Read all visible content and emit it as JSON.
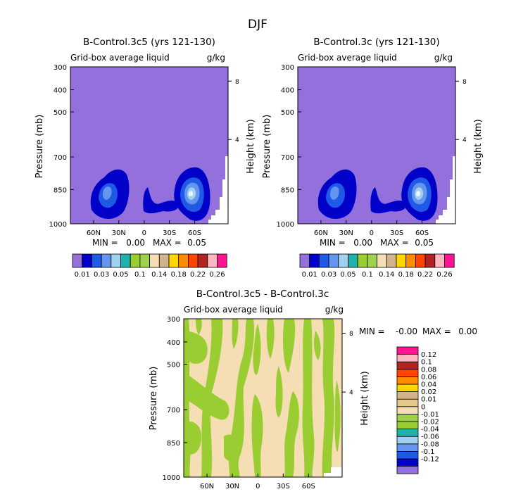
{
  "title": "DJF",
  "colors": {
    "cb_top": [
      "#9370db",
      "#0000c8",
      "#1e5ae6",
      "#6496f0",
      "#a0d2f0",
      "#20b2aa",
      "#9acd32",
      "#9ed24a",
      "#f5deb3",
      "#d2b48c",
      "#ffd700",
      "#ff8c00",
      "#ff4500",
      "#b22222",
      "#ffb6c1",
      "#ff1493"
    ],
    "cb_diff": [
      "#9370db",
      "#0000c8",
      "#1e5ae6",
      "#6496f0",
      "#a0d2f0",
      "#20b2aa",
      "#9acd32",
      "#9ed24a",
      "#f5deb3",
      "#e6c88c",
      "#d2b48c",
      "#ffd700",
      "#ff8c00",
      "#ff4500",
      "#b22222",
      "#ffb6c1",
      "#ff1493"
    ]
  },
  "chart_data": [
    {
      "type": "heatmap",
      "title": "B-Control.3c5 (yrs 121-130)",
      "subtitle_left": "Grid-box average liquid",
      "subtitle_right": "g/kg",
      "ylabel": "Pressure (mb)",
      "ylabel_right": "Height (km)",
      "y_ticks": [
        "300",
        "400",
        "500",
        "700",
        "850",
        "1000"
      ],
      "y_right_ticks": [
        "8",
        "4"
      ],
      "x_ticks": [
        "60N",
        "30N",
        "0",
        "30S",
        "60S"
      ],
      "stats": {
        "min_label": "MIN =",
        "min": "0.00",
        "max_label": "MAX =",
        "max": "0.05"
      },
      "colorbar_labels": [
        "0.01",
        "0.03",
        "0.05",
        "0.1",
        "0.14",
        "0.18",
        "0.22",
        "0.26"
      ],
      "xlim": [
        "90N",
        "90S"
      ],
      "ylim_mb": [
        1000,
        300
      ]
    },
    {
      "type": "heatmap",
      "title": "B-Control.3c (yrs 121-130)",
      "subtitle_left": "Grid-box average liquid",
      "subtitle_right": "g/kg",
      "ylabel": "Pressure (mb)",
      "ylabel_right": "Height (km)",
      "y_ticks": [
        "300",
        "400",
        "500",
        "700",
        "850",
        "1000"
      ],
      "y_right_ticks": [
        "8",
        "4"
      ],
      "x_ticks": [
        "60N",
        "30N",
        "0",
        "30S",
        "60S"
      ],
      "stats": {
        "min_label": "MIN =",
        "min": "0.00",
        "max_label": "MAX =",
        "max": "0.05"
      },
      "colorbar_labels": [
        "0.01",
        "0.03",
        "0.05",
        "0.1",
        "0.14",
        "0.18",
        "0.22",
        "0.26"
      ],
      "xlim": [
        "90N",
        "90S"
      ],
      "ylim_mb": [
        1000,
        300
      ]
    },
    {
      "type": "heatmap",
      "title": "B-Control.3c5 - B-Control.3c",
      "subtitle_left": "Grid-box average liquid",
      "subtitle_right": "g/kg",
      "ylabel": "Pressure (mb)",
      "ylabel_right": "Height (km)",
      "y_ticks": [
        "300",
        "400",
        "500",
        "700",
        "850",
        "1000"
      ],
      "y_right_ticks": [
        "8",
        "4"
      ],
      "x_ticks": [
        "60N",
        "30N",
        "0",
        "30S",
        "60S"
      ],
      "stats": {
        "min_label": "MIN =",
        "min": "-0.00",
        "max_label": "MAX =",
        "max": "0.00"
      },
      "colorbar_labels": [
        "0.12",
        "0.1",
        "0.08",
        "0.06",
        "0.04",
        "0.02",
        "0.01",
        "0",
        "-0.01",
        "-0.02",
        "-0.04",
        "-0.06",
        "-0.08",
        "-0.1",
        "-0.12"
      ],
      "xlim": [
        "90N",
        "90S"
      ],
      "ylim_mb": [
        1000,
        300
      ]
    }
  ]
}
